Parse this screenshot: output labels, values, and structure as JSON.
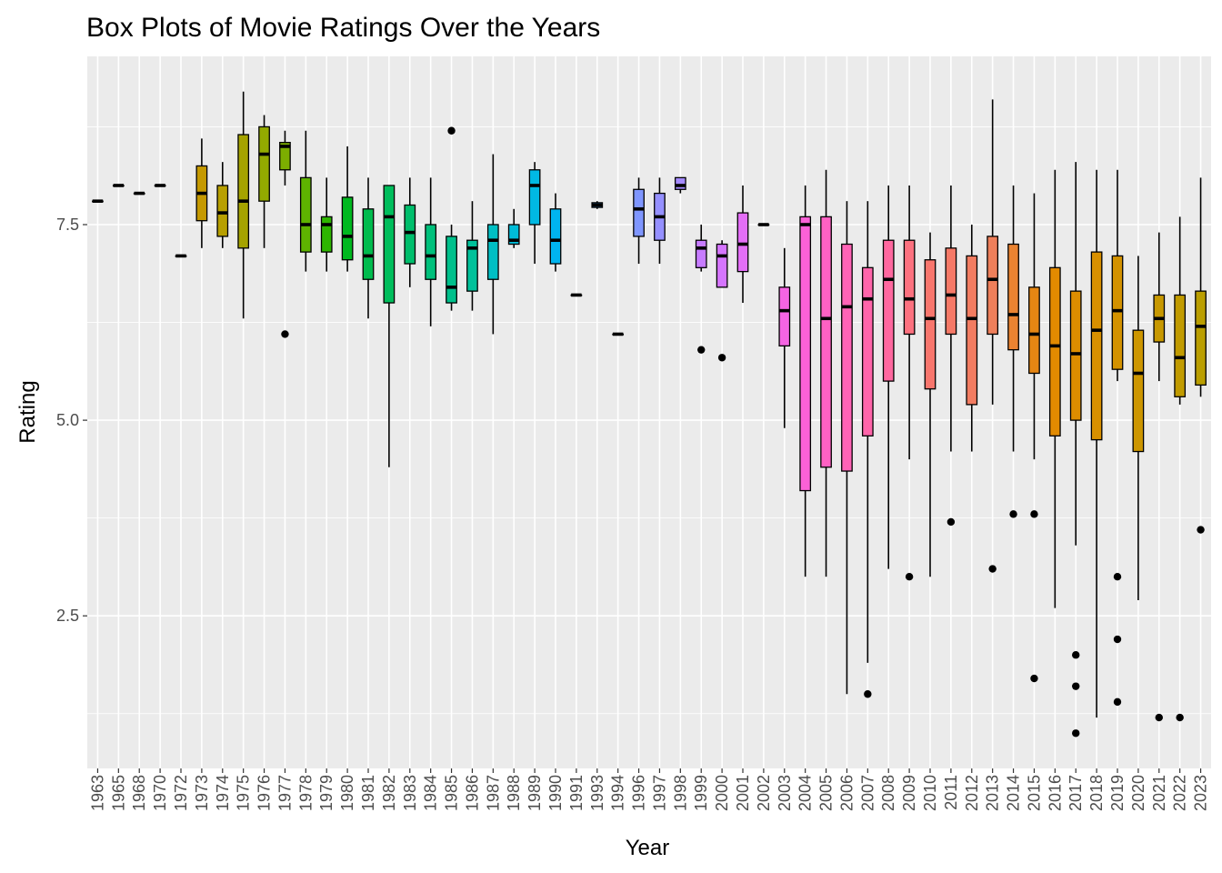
{
  "chart_data": {
    "type": "boxplot",
    "title": "Box Plots of Movie Ratings Over the Years",
    "xlabel": "Year",
    "ylabel": "Rating",
    "ylim": [
      0.55,
      9.65
    ],
    "yticks": [
      2.5,
      5.0,
      7.5
    ],
    "ytick_labels": [
      "2.5",
      "5.0",
      "7.5"
    ],
    "grid": true,
    "legend": "none",
    "categories": [
      "1963",
      "1965",
      "1968",
      "1970",
      "1972",
      "1973",
      "1974",
      "1975",
      "1976",
      "1977",
      "1978",
      "1979",
      "1980",
      "1981",
      "1982",
      "1983",
      "1984",
      "1985",
      "1986",
      "1987",
      "1988",
      "1989",
      "1990",
      "1991",
      "1993",
      "1994",
      "1996",
      "1997",
      "1998",
      "1999",
      "2000",
      "2001",
      "2002",
      "2003",
      "2004",
      "2005",
      "2006",
      "2007",
      "2008",
      "2009",
      "2010",
      "2011",
      "2012",
      "2013",
      "2014",
      "2015",
      "2016",
      "2017",
      "2018",
      "2019",
      "2020",
      "2021",
      "2022",
      "2023"
    ],
    "colors": [
      "#F8766D",
      "#F27D52",
      "#EA8331",
      "#E08B00",
      "#D39200",
      "#C59900",
      "#B79F00",
      "#A5A300",
      "#93AA00",
      "#7CAE00",
      "#5EB300",
      "#2EB600",
      "#00B81F",
      "#00BB4E",
      "#00BD5C",
      "#00BE6C",
      "#00C07B",
      "#00C08B",
      "#00C19A",
      "#00BFC4",
      "#00BCD8",
      "#00B9E3",
      "#00B4EF",
      "#00ADFA",
      "#35A2FF",
      "#619CFF",
      "#7F96FF",
      "#9590FF",
      "#A58AFF",
      "#C77CFF",
      "#D575FE",
      "#E36EF6",
      "#EF67EB",
      "#F564E3",
      "#FB61D7",
      "#FF61C3",
      "#FF63B6",
      "#FF65AA",
      "#FF689F",
      "#FC717F",
      "#F8766D",
      "#F57967",
      "#F27C61",
      "#EE7F5B",
      "#EA8331",
      "#E68613",
      "#E28A00",
      "#DD8D00",
      "#D89000",
      "#D39200",
      "#CD9600",
      "#C79800",
      "#C19B00",
      "#BA9E00"
    ],
    "boxes": [
      {
        "q1": 7.8,
        "median": 7.8,
        "q3": 7.8,
        "whisker_low": 7.8,
        "whisker_high": 7.8,
        "outliers": []
      },
      {
        "q1": 8.0,
        "median": 8.0,
        "q3": 8.0,
        "whisker_low": 8.0,
        "whisker_high": 8.0,
        "outliers": []
      },
      {
        "q1": 7.9,
        "median": 7.9,
        "q3": 7.9,
        "whisker_low": 7.9,
        "whisker_high": 7.9,
        "outliers": []
      },
      {
        "q1": 8.0,
        "median": 8.0,
        "q3": 8.0,
        "whisker_low": 8.0,
        "whisker_high": 8.0,
        "outliers": []
      },
      {
        "q1": 7.1,
        "median": 7.1,
        "q3": 7.1,
        "whisker_low": 7.1,
        "whisker_high": 7.1,
        "outliers": []
      },
      {
        "q1": 7.55,
        "median": 7.9,
        "q3": 8.25,
        "whisker_low": 7.2,
        "whisker_high": 8.6,
        "outliers": []
      },
      {
        "q1": 7.35,
        "median": 7.65,
        "q3": 8.0,
        "whisker_low": 7.2,
        "whisker_high": 8.3,
        "outliers": []
      },
      {
        "q1": 7.2,
        "median": 7.8,
        "q3": 8.65,
        "whisker_low": 6.3,
        "whisker_high": 9.2,
        "outliers": []
      },
      {
        "q1": 7.8,
        "median": 8.4,
        "q3": 8.75,
        "whisker_low": 7.2,
        "whisker_high": 8.9,
        "outliers": []
      },
      {
        "q1": 8.2,
        "median": 8.5,
        "q3": 8.55,
        "whisker_low": 8.0,
        "whisker_high": 8.7,
        "outliers": [
          6.1
        ]
      },
      {
        "q1": 7.15,
        "median": 7.5,
        "q3": 8.1,
        "whisker_low": 6.9,
        "whisker_high": 8.7,
        "outliers": []
      },
      {
        "q1": 7.15,
        "median": 7.5,
        "q3": 7.6,
        "whisker_low": 6.9,
        "whisker_high": 8.1,
        "outliers": []
      },
      {
        "q1": 7.05,
        "median": 7.35,
        "q3": 7.85,
        "whisker_low": 6.9,
        "whisker_high": 8.5,
        "outliers": []
      },
      {
        "q1": 6.8,
        "median": 7.1,
        "q3": 7.7,
        "whisker_low": 6.3,
        "whisker_high": 8.1,
        "outliers": []
      },
      {
        "q1": 6.5,
        "median": 7.6,
        "q3": 8.0,
        "whisker_low": 4.4,
        "whisker_high": 8.0,
        "outliers": []
      },
      {
        "q1": 7.0,
        "median": 7.4,
        "q3": 7.75,
        "whisker_low": 6.7,
        "whisker_high": 8.1,
        "outliers": []
      },
      {
        "q1": 6.8,
        "median": 7.1,
        "q3": 7.5,
        "whisker_low": 6.2,
        "whisker_high": 8.1,
        "outliers": []
      },
      {
        "q1": 6.5,
        "median": 6.7,
        "q3": 7.35,
        "whisker_low": 6.4,
        "whisker_high": 7.5,
        "outliers": [
          8.7
        ]
      },
      {
        "q1": 6.65,
        "median": 7.2,
        "q3": 7.3,
        "whisker_low": 6.4,
        "whisker_high": 7.8,
        "outliers": []
      },
      {
        "q1": 6.8,
        "median": 7.3,
        "q3": 7.5,
        "whisker_low": 6.1,
        "whisker_high": 8.4,
        "outliers": []
      },
      {
        "q1": 7.25,
        "median": 7.3,
        "q3": 7.5,
        "whisker_low": 7.2,
        "whisker_high": 7.7,
        "outliers": []
      },
      {
        "q1": 7.5,
        "median": 8.0,
        "q3": 8.2,
        "whisker_low": 7.0,
        "whisker_high": 8.3,
        "outliers": []
      },
      {
        "q1": 7.0,
        "median": 7.3,
        "q3": 7.7,
        "whisker_low": 6.9,
        "whisker_high": 7.9,
        "outliers": []
      },
      {
        "q1": 6.6,
        "median": 6.6,
        "q3": 6.6,
        "whisker_low": 6.6,
        "whisker_high": 6.6,
        "outliers": []
      },
      {
        "q1": 7.72,
        "median": 7.75,
        "q3": 7.78,
        "whisker_low": 7.7,
        "whisker_high": 7.8,
        "outliers": []
      },
      {
        "q1": 6.1,
        "median": 6.1,
        "q3": 6.1,
        "whisker_low": 6.1,
        "whisker_high": 6.1,
        "outliers": []
      },
      {
        "q1": 7.35,
        "median": 7.7,
        "q3": 7.95,
        "whisker_low": 7.0,
        "whisker_high": 8.1,
        "outliers": []
      },
      {
        "q1": 7.3,
        "median": 7.6,
        "q3": 7.9,
        "whisker_low": 7.0,
        "whisker_high": 8.1,
        "outliers": []
      },
      {
        "q1": 7.95,
        "median": 8.0,
        "q3": 8.1,
        "whisker_low": 7.9,
        "whisker_high": 8.1,
        "outliers": []
      },
      {
        "q1": 6.95,
        "median": 7.2,
        "q3": 7.3,
        "whisker_low": 6.9,
        "whisker_high": 7.5,
        "outliers": [
          5.9
        ]
      },
      {
        "q1": 6.7,
        "median": 7.1,
        "q3": 7.25,
        "whisker_low": 6.7,
        "whisker_high": 7.3,
        "outliers": [
          5.8
        ]
      },
      {
        "q1": 6.9,
        "median": 7.25,
        "q3": 7.65,
        "whisker_low": 6.5,
        "whisker_high": 8.0,
        "outliers": []
      },
      {
        "q1": 7.5,
        "median": 7.5,
        "q3": 7.5,
        "whisker_low": 7.5,
        "whisker_high": 7.5,
        "outliers": []
      },
      {
        "q1": 5.95,
        "median": 6.4,
        "q3": 6.7,
        "whisker_low": 4.9,
        "whisker_high": 7.2,
        "outliers": []
      },
      {
        "q1": 4.1,
        "median": 7.5,
        "q3": 7.6,
        "whisker_low": 3.0,
        "whisker_high": 8.0,
        "outliers": []
      },
      {
        "q1": 4.4,
        "median": 6.3,
        "q3": 7.6,
        "whisker_low": 3.0,
        "whisker_high": 8.2,
        "outliers": []
      },
      {
        "q1": 4.35,
        "median": 6.45,
        "q3": 7.25,
        "whisker_low": 1.5,
        "whisker_high": 7.8,
        "outliers": []
      },
      {
        "q1": 4.8,
        "median": 6.55,
        "q3": 6.95,
        "whisker_low": 1.9,
        "whisker_high": 7.8,
        "outliers": [
          1.5
        ]
      },
      {
        "q1": 5.5,
        "median": 6.8,
        "q3": 7.3,
        "whisker_low": 3.1,
        "whisker_high": 8.0,
        "outliers": []
      },
      {
        "q1": 6.1,
        "median": 6.55,
        "q3": 7.3,
        "whisker_low": 4.5,
        "whisker_high": 8.0,
        "outliers": [
          3.0
        ]
      },
      {
        "q1": 5.4,
        "median": 6.3,
        "q3": 7.05,
        "whisker_low": 3.0,
        "whisker_high": 7.4,
        "outliers": []
      },
      {
        "q1": 6.1,
        "median": 6.6,
        "q3": 7.2,
        "whisker_low": 4.6,
        "whisker_high": 8.0,
        "outliers": [
          3.7
        ]
      },
      {
        "q1": 5.2,
        "median": 6.3,
        "q3": 7.1,
        "whisker_low": 4.6,
        "whisker_high": 7.5,
        "outliers": []
      },
      {
        "q1": 6.1,
        "median": 6.8,
        "q3": 7.35,
        "whisker_low": 5.2,
        "whisker_high": 9.1,
        "outliers": [
          3.1
        ]
      },
      {
        "q1": 5.9,
        "median": 6.35,
        "q3": 7.25,
        "whisker_low": 4.6,
        "whisker_high": 8.0,
        "outliers": [
          3.8
        ]
      },
      {
        "q1": 5.6,
        "median": 6.1,
        "q3": 6.7,
        "whisker_low": 4.5,
        "whisker_high": 7.9,
        "outliers": [
          3.8,
          1.7
        ]
      },
      {
        "q1": 4.8,
        "median": 5.95,
        "q3": 6.95,
        "whisker_low": 2.6,
        "whisker_high": 8.2,
        "outliers": []
      },
      {
        "q1": 5.0,
        "median": 5.85,
        "q3": 6.65,
        "whisker_low": 3.4,
        "whisker_high": 8.3,
        "outliers": [
          2.0,
          1.6,
          1.0
        ]
      },
      {
        "q1": 4.75,
        "median": 6.15,
        "q3": 7.15,
        "whisker_low": 1.2,
        "whisker_high": 8.2,
        "outliers": []
      },
      {
        "q1": 5.65,
        "median": 6.4,
        "q3": 7.1,
        "whisker_low": 5.5,
        "whisker_high": 8.2,
        "outliers": [
          3.0,
          2.2,
          1.4
        ]
      },
      {
        "q1": 4.6,
        "median": 5.6,
        "q3": 6.15,
        "whisker_low": 2.7,
        "whisker_high": 7.1,
        "outliers": []
      },
      {
        "q1": 6.0,
        "median": 6.3,
        "q3": 6.6,
        "whisker_low": 5.5,
        "whisker_high": 7.4,
        "outliers": [
          1.2
        ]
      },
      {
        "q1": 5.3,
        "median": 5.8,
        "q3": 6.6,
        "whisker_low": 5.2,
        "whisker_high": 7.6,
        "outliers": [
          1.2
        ]
      },
      {
        "q1": 5.45,
        "median": 6.2,
        "q3": 6.65,
        "whisker_low": 5.3,
        "whisker_high": 8.1,
        "outliers": [
          3.6
        ]
      }
    ]
  }
}
